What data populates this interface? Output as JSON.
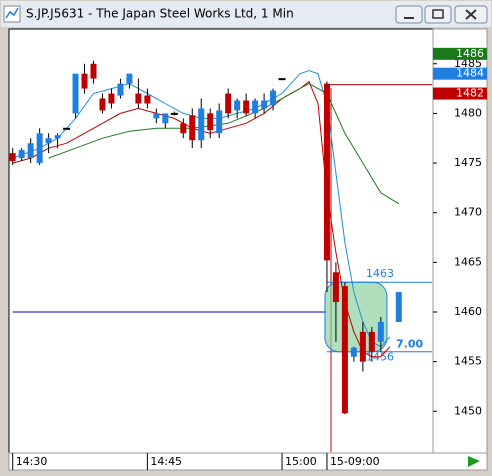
{
  "window": {
    "title": "S.JP.J5631 - The Japan Steel Works Ltd, 1 Min"
  },
  "chart_data": {
    "type": "candlestick",
    "ylim": [
      1445.9,
      1488.4
    ],
    "yticks": [
      1450,
      1455,
      1460,
      1465,
      1470,
      1475,
      1480,
      1485
    ],
    "xlim": [
      -0.3,
      46.7
    ],
    "xticks": [
      {
        "value": 0,
        "label": "14:30"
      },
      {
        "value": 15,
        "label": "14:45"
      },
      {
        "value": 30,
        "label": "15:00"
      },
      {
        "value": 35,
        "label": "15-09:00"
      }
    ],
    "up_color": "#1e7fe0",
    "down_color": "#c00000",
    "candles": {
      "x": [
        0,
        1,
        2,
        3,
        4,
        5,
        6,
        7,
        8,
        9,
        10,
        11,
        12,
        13,
        14,
        15,
        16,
        17,
        18,
        19,
        20,
        21,
        22,
        23,
        24,
        25,
        26,
        27,
        28,
        29,
        30,
        35,
        36,
        37,
        38,
        39,
        40,
        41,
        43
      ],
      "open": [
        1476,
        1475.5,
        1475.5,
        1475,
        1477,
        1477.5,
        1478.5,
        1480,
        1484,
        1485,
        1481.5,
        1482,
        1481.8,
        1483,
        1482,
        1481.8,
        1479.5,
        1479,
        1480,
        1479,
        1479.8,
        1477.3,
        1480,
        1478,
        1482,
        1480.3,
        1481.3,
        1480,
        1480.5,
        1480.8,
        1483.5,
        1483,
        1464,
        1462.6,
        1455.5,
        1458,
        1458,
        1457,
        1459
      ],
      "high": [
        1476.5,
        1476.5,
        1477.5,
        1478.5,
        1478,
        1478,
        1478.5,
        1484,
        1485,
        1485.3,
        1482,
        1482.5,
        1483.5,
        1484,
        1483.5,
        1482.5,
        1480.5,
        1480,
        1480.2,
        1479.5,
        1480.5,
        1481.5,
        1480.5,
        1481,
        1482.5,
        1481.5,
        1482,
        1481.5,
        1482,
        1482.5,
        1483.5,
        1483.2,
        1465,
        1463,
        1456.5,
        1459,
        1458.5,
        1459.5,
        1462
      ],
      "low": [
        1474.8,
        1475.2,
        1475,
        1474.8,
        1476,
        1476.5,
        1478.5,
        1479.5,
        1482,
        1483,
        1480,
        1480.5,
        1481.5,
        1482.5,
        1480.5,
        1480.5,
        1479,
        1478.5,
        1479.8,
        1477.5,
        1476.5,
        1476.5,
        1477.5,
        1477.5,
        1479.5,
        1479.5,
        1479.7,
        1479.5,
        1480,
        1480.3,
        1483.5,
        1462,
        1457,
        1449.7,
        1455,
        1454,
        1455,
        1456,
        1459
      ],
      "close": [
        1475.2,
        1476.3,
        1477,
        1478,
        1477.5,
        1477.8,
        1478.5,
        1484,
        1482.5,
        1483.5,
        1480.3,
        1481,
        1483,
        1484,
        1481,
        1481,
        1480,
        1480,
        1480,
        1478,
        1477.3,
        1480.5,
        1478.3,
        1480.3,
        1480,
        1481.3,
        1480,
        1481.3,
        1481.3,
        1482.3,
        1483.5,
        1465.2,
        1461,
        1449.8,
        1456.4,
        1455,
        1456,
        1459,
        1462
      ]
    },
    "lines": [
      {
        "color": "#1e90e0",
        "x": [
          0,
          3,
          5,
          7,
          9,
          11,
          13,
          15,
          17,
          19,
          21,
          23,
          25,
          27,
          29,
          30,
          31,
          32,
          33,
          34,
          35,
          36,
          37,
          38,
          39,
          40,
          41,
          42
        ],
        "values": [
          1475.5,
          1476.5,
          1477.5,
          1479.5,
          1482,
          1482.5,
          1483,
          1482,
          1481,
          1480,
          1479.5,
          1479.5,
          1480,
          1480.5,
          1481.5,
          1482,
          1483,
          1484,
          1484.3,
          1484,
          1481,
          1474,
          1467,
          1462,
          1459,
          1457,
          1456.5,
          1457.5
        ]
      },
      {
        "color": "#c00000",
        "x": [
          0,
          2,
          4,
          6,
          8,
          10,
          12,
          14,
          16,
          18,
          20,
          22,
          24,
          26,
          28,
          30,
          32,
          33,
          34,
          35,
          36,
          37,
          38,
          39,
          40,
          41,
          42
        ],
        "values": [
          1475,
          1475.5,
          1476.5,
          1477,
          1478,
          1479,
          1480,
          1480.5,
          1480,
          1479.5,
          1478.5,
          1478,
          1478.5,
          1479,
          1480,
          1481.5,
          1482.5,
          1483.2,
          1481,
          1472,
          1466,
          1461,
          1458,
          1456,
          1455.5,
          1455.5,
          1456.5
        ]
      },
      {
        "color": "#1f7a1f",
        "x": [
          4,
          7,
          10,
          13,
          16,
          20,
          24,
          28,
          31,
          33,
          35,
          37,
          39,
          41,
          43
        ],
        "values": [
          1475.5,
          1476.5,
          1477.5,
          1478.2,
          1478.5,
          1478.5,
          1479,
          1480.5,
          1482,
          1483,
          1482,
          1478,
          1475,
          1472,
          1470.9
        ]
      }
    ],
    "levels": [
      {
        "value": 1482.9,
        "color": "#c00000",
        "from": 35
      },
      {
        "value": 1460,
        "color": "#0000c0",
        "from": 0,
        "to": 35
      }
    ],
    "zone": {
      "high": 1463,
      "low": 1456,
      "from": 35,
      "text": "7.00"
    },
    "price_flags": [
      {
        "value": 1486,
        "color": "#1a7a1a"
      },
      {
        "value": 1484,
        "color": "#1e7fe0"
      },
      {
        "value": 1482,
        "color": "#c00000"
      }
    ]
  }
}
